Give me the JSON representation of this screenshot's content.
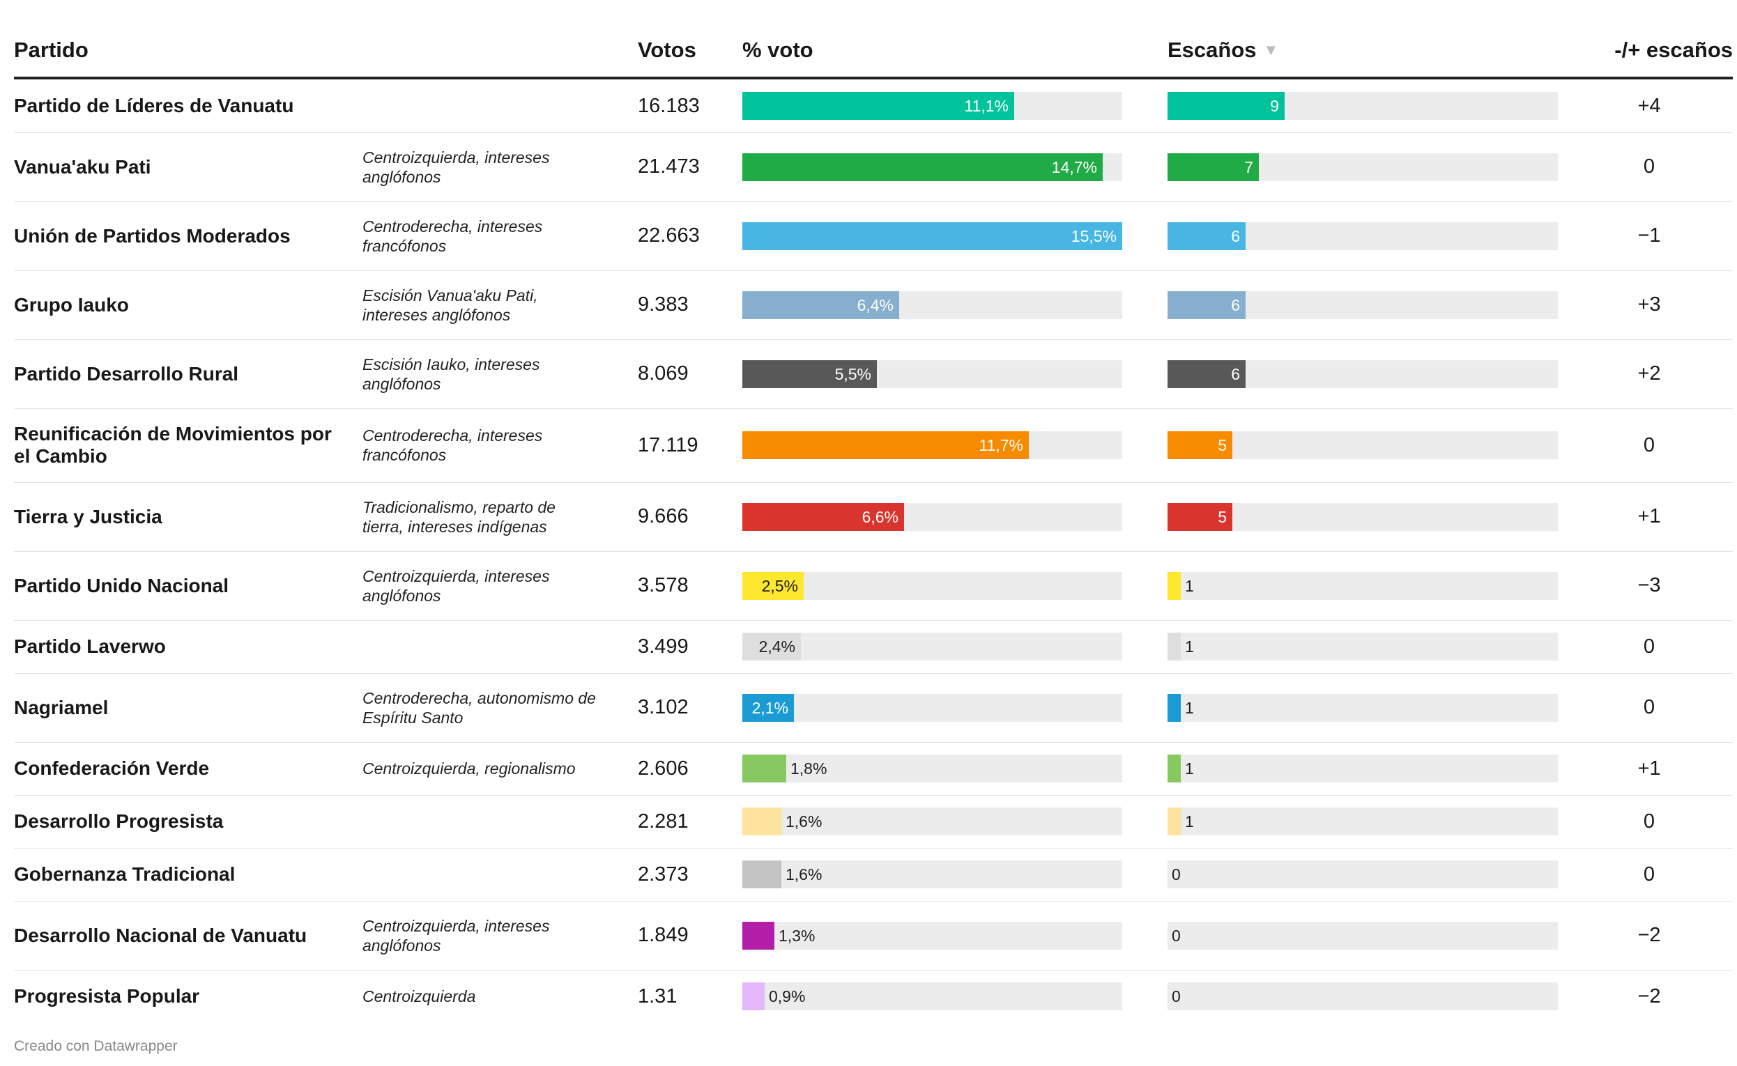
{
  "table": {
    "headers": {
      "party": "Partido",
      "votes": "Votos",
      "pct": "% voto",
      "seats": "Escaños",
      "change": "-/+ escaños"
    },
    "sort_indicator_icon": "sort-descending-icon"
  },
  "chart_data": {
    "type": "table",
    "pct_scale_max": 15.5,
    "seats_scale_max": 30,
    "rows": [
      {
        "party": "Partido de Líderes de Vanuatu",
        "description": "",
        "votes": "16.183",
        "pct": 11.1,
        "pct_label": "11,1%",
        "seats": 9,
        "seats_label": "9",
        "change": "+4",
        "color": "#00c39b"
      },
      {
        "party": "Vanua'aku Pati",
        "description": "Centroizquierda, intereses anglófonos",
        "votes": "21.473",
        "pct": 14.7,
        "pct_label": "14,7%",
        "seats": 7,
        "seats_label": "7",
        "change": "0",
        "color": "#20ab46"
      },
      {
        "party": "Unión de Partidos Moderados",
        "description": "Centroderecha, intereses francófonos",
        "votes": "22.663",
        "pct": 15.5,
        "pct_label": "15,5%",
        "seats": 6,
        "seats_label": "6",
        "change": "−1",
        "color": "#47b6e3"
      },
      {
        "party": "Grupo Iauko",
        "description": "Escisión Vanua'aku Pati, intereses anglófonos",
        "votes": "9.383",
        "pct": 6.4,
        "pct_label": "6,4%",
        "seats": 6,
        "seats_label": "6",
        "change": "+3",
        "color": "#86aece"
      },
      {
        "party": "Partido Desarrollo Rural",
        "description": "Escisión Iauko, intereses anglófonos",
        "votes": "8.069",
        "pct": 5.5,
        "pct_label": "5,5%",
        "seats": 6,
        "seats_label": "6",
        "change": "+2",
        "color": "#585858"
      },
      {
        "party": "Reunificación de Movimientos por el Cambio",
        "description": "Centroderecha, intereses francófonos",
        "votes": "17.119",
        "pct": 11.7,
        "pct_label": "11,7%",
        "seats": 5,
        "seats_label": "5",
        "change": "0",
        "color": "#f78b00"
      },
      {
        "party": "Tierra y Justicia",
        "description": "Tradicionalismo, reparto de tierra, intereses indígenas",
        "votes": "9.666",
        "pct": 6.6,
        "pct_label": "6,6%",
        "seats": 5,
        "seats_label": "5",
        "change": "+1",
        "color": "#d9342d"
      },
      {
        "party": "Partido Unido Nacional",
        "description": "Centroizquierda, intereses anglófonos",
        "votes": "3.578",
        "pct": 2.5,
        "pct_label": "2,5%",
        "seats": 1,
        "seats_label": "1",
        "change": "−3",
        "color": "#fde82f"
      },
      {
        "party": "Partido Laverwo",
        "description": "",
        "votes": "3.499",
        "pct": 2.4,
        "pct_label": "2,4%",
        "seats": 1,
        "seats_label": "1",
        "change": "0",
        "color": "#dedede"
      },
      {
        "party": "Nagriamel",
        "description": "Centroderecha, autonomismo de Espíritu Santo",
        "votes": "3.102",
        "pct": 2.1,
        "pct_label": "2,1%",
        "seats": 1,
        "seats_label": "1",
        "change": "0",
        "color": "#1b9bd4"
      },
      {
        "party": "Confederación Verde",
        "description": "Centroizquierda, regionalismo",
        "votes": "2.606",
        "pct": 1.8,
        "pct_label": "1,8%",
        "seats": 1,
        "seats_label": "1",
        "change": "+1",
        "color": "#88c861"
      },
      {
        "party": "Desarrollo Progresista",
        "description": "",
        "votes": "2.281",
        "pct": 1.6,
        "pct_label": "1,6%",
        "seats": 1,
        "seats_label": "1",
        "change": "0",
        "color": "#fee39f"
      },
      {
        "party": "Gobernanza Tradicional",
        "description": "",
        "votes": "2.373",
        "pct": 1.6,
        "pct_label": "1,6%",
        "seats": 0,
        "seats_label": "0",
        "change": "0",
        "color": "#c3c3c3"
      },
      {
        "party": "Desarrollo Nacional de Vanuatu",
        "description": "Centroizquierda, intereses anglófonos",
        "votes": "1.849",
        "pct": 1.3,
        "pct_label": "1,3%",
        "seats": 0,
        "seats_label": "0",
        "change": "−2",
        "color": "#b31ea9"
      },
      {
        "party": "Progresista Popular",
        "description": "Centroizquierda",
        "votes": "1.31",
        "pct": 0.9,
        "pct_label": "0,9%",
        "seats": 0,
        "seats_label": "0",
        "change": "−2",
        "color": "#e4b8fc"
      }
    ]
  },
  "footer": {
    "credit": "Creado con Datawrapper"
  }
}
